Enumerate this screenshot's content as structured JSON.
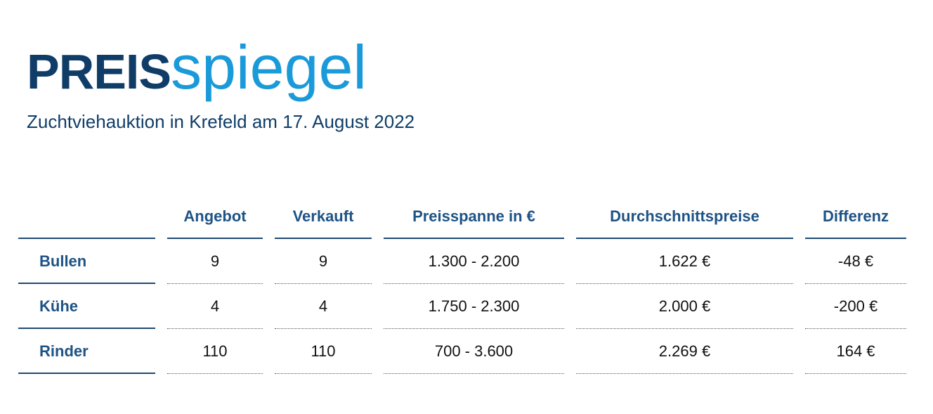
{
  "header": {
    "title_bold": "PREIS",
    "title_light": "spiegel",
    "subtitle": "Zuchtviehauktion in Krefeld am 17. August 2022"
  },
  "table": {
    "columns": [
      "Angebot",
      "Verkauft",
      "Preisspanne in €",
      "Durchschnittspreise",
      "Differenz"
    ],
    "rows": [
      {
        "label": "Bullen",
        "cells": [
          "9",
          "9",
          "1.300 - 2.200",
          "1.622 €",
          "-48 €"
        ]
      },
      {
        "label": "Kühe",
        "cells": [
          "4",
          "4",
          "1.750 - 2.300",
          "2.000 €",
          "-200 €"
        ]
      },
      {
        "label": "Rinder",
        "cells": [
          "110",
          "110",
          "700 - 3.600",
          "2.269 €",
          "164 €"
        ]
      }
    ]
  },
  "colors": {
    "dark_blue": "#0f3d68",
    "light_blue": "#1a9ad9",
    "header_blue": "#1e5385"
  }
}
